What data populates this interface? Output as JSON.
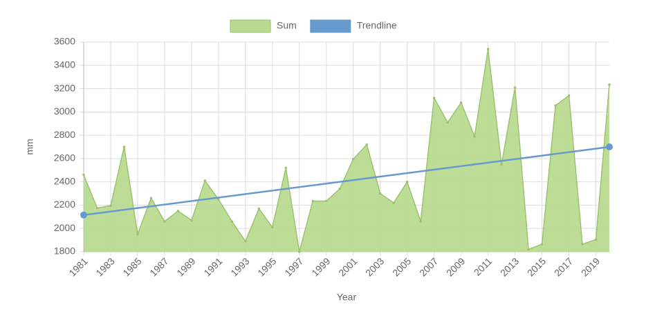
{
  "chart_data": {
    "type": "area",
    "x_label": "Year",
    "y_label": "mm",
    "x": [
      1981,
      1982,
      1983,
      1984,
      1985,
      1986,
      1987,
      1988,
      1989,
      1990,
      1991,
      1992,
      1993,
      1994,
      1995,
      1996,
      1997,
      1998,
      1999,
      2000,
      2001,
      2002,
      2003,
      2004,
      2005,
      2006,
      2007,
      2008,
      2009,
      2010,
      2011,
      2012,
      2013,
      2014,
      2015,
      2016,
      2017,
      2018,
      2019,
      2020
    ],
    "series": [
      {
        "name": "Sum",
        "color": "#b9da90",
        "values": [
          2460,
          2175,
          2195,
          2700,
          1950,
          2260,
          2060,
          2150,
          2070,
          2410,
          2250,
          2060,
          1890,
          2170,
          2010,
          2520,
          1800,
          2235,
          2235,
          2340,
          2595,
          2720,
          2300,
          2220,
          2400,
          2060,
          3120,
          2910,
          3080,
          2790,
          3540,
          2550,
          3210,
          1820,
          1865,
          3055,
          3140,
          1865,
          1905,
          3235
        ]
      },
      {
        "name": "Trendline",
        "color": "#6699cc",
        "type": "line",
        "x": [
          1981,
          2020
        ],
        "values": [
          2115,
          2700
        ]
      }
    ],
    "xlim": [
      1981,
      2020
    ],
    "xticks": [
      1981,
      1983,
      1985,
      1987,
      1989,
      1991,
      1993,
      1995,
      1997,
      1999,
      2001,
      2003,
      2005,
      2007,
      2009,
      2011,
      2013,
      2015,
      2017,
      2019
    ],
    "ylim": [
      1800,
      3600
    ],
    "yticks": [
      1800,
      2000,
      2200,
      2400,
      2600,
      2800,
      3000,
      3200,
      3400,
      3600
    ],
    "grid": true,
    "legend": "top"
  }
}
